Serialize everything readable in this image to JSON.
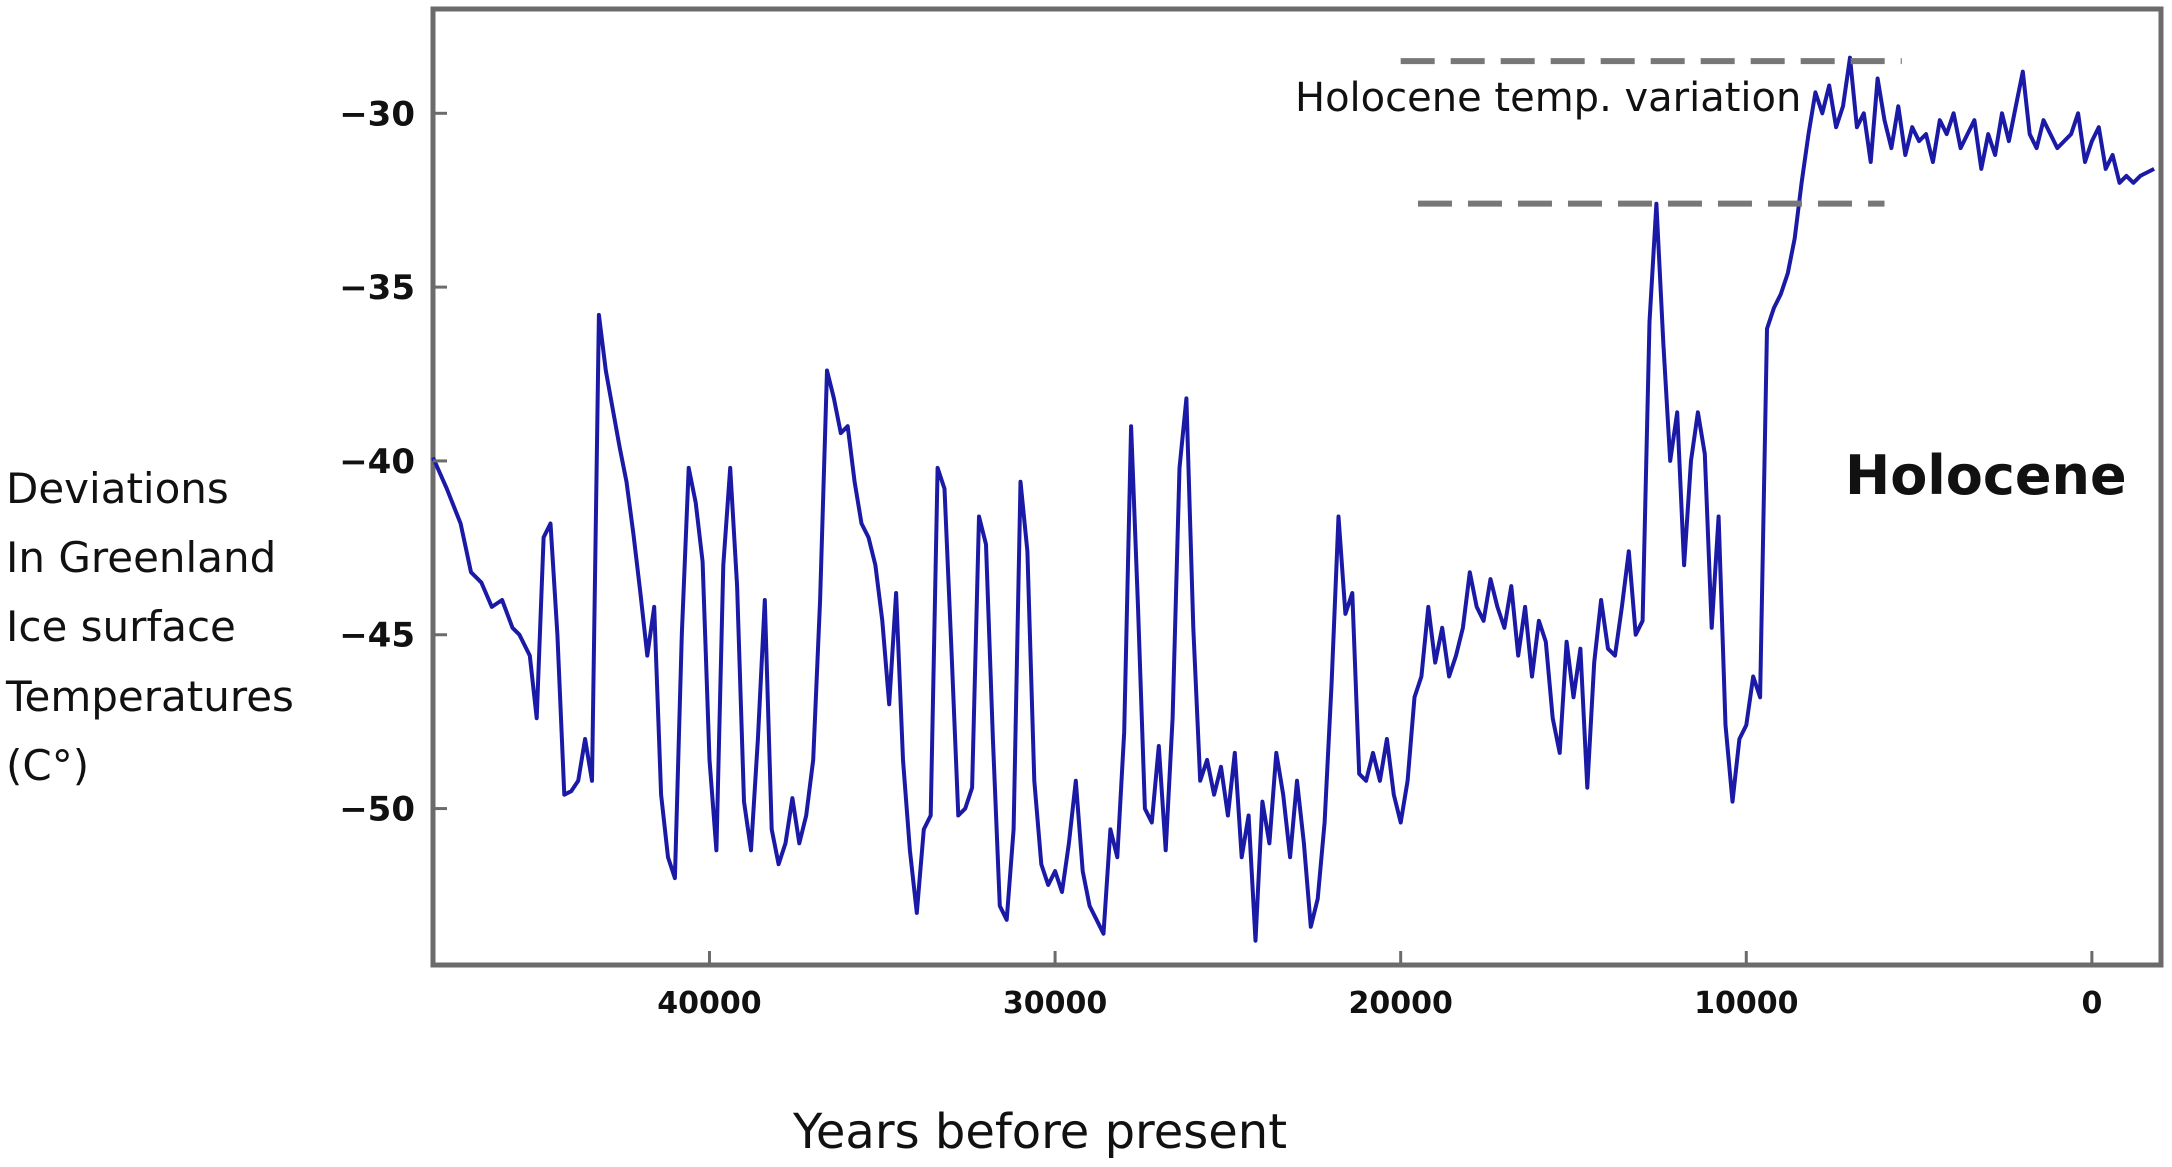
{
  "chart_data": {
    "type": "line",
    "title": "",
    "xlabel": "Years before present",
    "ylabel_lines": [
      "Deviations",
      "In Greenland",
      "Ice surface",
      "Temperatures",
      "(C°)"
    ],
    "xlim": [
      48000,
      -2000
    ],
    "ylim": [
      -54.5,
      -27
    ],
    "x_ticks": [
      40000,
      30000,
      20000,
      10000,
      0
    ],
    "x_tick_labels": [
      "40000",
      "30000",
      "20000",
      "10000",
      "0"
    ],
    "y_ticks": [
      -30,
      -35,
      -40,
      -45,
      -50
    ],
    "y_tick_labels": [
      "−30",
      "−35",
      "−40",
      "−45",
      "−50"
    ],
    "grid": false,
    "line_color": "#1a1aa6",
    "annotations": {
      "holocene_variation_label": "Holocene temp. variation",
      "holocene_label": "Holocene",
      "upper_dashed": {
        "y": -28.5,
        "x_from": 20000,
        "x_to": 5500
      },
      "lower_dashed": {
        "y": -32.6,
        "x_from": 19500,
        "x_to": 6000
      }
    },
    "series": [
      {
        "x": [
          48000,
          47600,
          47200,
          46900,
          46600,
          46300,
          46000,
          45700,
          45500,
          45200,
          45000,
          44800,
          44600,
          44400,
          44200,
          44000,
          43800,
          43600,
          43400,
          43200,
          43000,
          42800,
          42600,
          42400,
          42200,
          42000,
          41800,
          41600,
          41400,
          41200,
          41000,
          40800,
          40600,
          40400,
          40200,
          40000,
          39800,
          39600,
          39400,
          39200,
          39000,
          38800,
          38600,
          38400,
          38200,
          38000,
          37800,
          37600,
          37400,
          37200,
          37000,
          36800,
          36600,
          36400,
          36200,
          36000,
          35800,
          35600,
          35400,
          35200,
          35000,
          34800,
          34600,
          34400,
          34200,
          34000,
          33800,
          33600,
          33400,
          33200,
          33000,
          32800,
          32600,
          32400,
          32200,
          32000,
          31800,
          31600,
          31400,
          31200,
          31000,
          30800,
          30600,
          30400,
          30200,
          30000,
          29800,
          29600,
          29400,
          29200,
          29000,
          28800,
          28600,
          28400,
          28200,
          28000,
          27800,
          27600,
          27400,
          27200,
          27000,
          26800,
          26600,
          26400,
          26200,
          26000,
          25800,
          25600,
          25400,
          25200,
          25000,
          24800,
          24600,
          24400,
          24200,
          24000,
          23800,
          23600,
          23400,
          23200,
          23000,
          22800,
          22600,
          22400,
          22200,
          22000,
          21800,
          21600,
          21400,
          21200,
          21000,
          20800,
          20600,
          20400,
          20200,
          20000,
          19800,
          19600,
          19400,
          19200,
          19000,
          18800,
          18600,
          18400,
          18200,
          18000,
          17800,
          17600,
          17400,
          17200,
          17000,
          16800,
          16600,
          16400,
          16200,
          16000,
          15800,
          15600,
          15400,
          15200,
          15000,
          14800,
          14600,
          14400,
          14200,
          14000,
          13800,
          13600,
          13400,
          13200,
          13000,
          12800,
          12600,
          12400,
          12200,
          12000,
          11800,
          11600,
          11400,
          11200,
          11000,
          10800,
          10600,
          10400,
          10200,
          10000,
          9800,
          9600,
          9400,
          9200,
          9000,
          8800,
          8600,
          8400,
          8200,
          8000,
          7800,
          7600,
          7400,
          7200,
          7000,
          6800,
          6600,
          6400,
          6200,
          6000,
          5800,
          5600,
          5400,
          5200,
          5000,
          4800,
          4600,
          4400,
          4200,
          4000,
          3800,
          3600,
          3400,
          3200,
          3000,
          2800,
          2600,
          2400,
          2200,
          2000,
          1800,
          1600,
          1400,
          1200,
          1000,
          800,
          600,
          400,
          200,
          0,
          -200,
          -400,
          -600,
          -800,
          -1000,
          -1200,
          -1400,
          -1800
        ],
        "y": [
          -39.9,
          -40.8,
          -41.8,
          -43.2,
          -43.5,
          -44.2,
          -44.0,
          -44.8,
          -45.0,
          -45.6,
          -47.4,
          -42.2,
          -41.8,
          -45.0,
          -49.6,
          -49.5,
          -49.2,
          -48.0,
          -49.2,
          -35.8,
          -37.4,
          -38.5,
          -39.6,
          -40.6,
          -42.1,
          -43.8,
          -45.6,
          -44.2,
          -49.6,
          -51.4,
          -52.0,
          -45.0,
          -40.2,
          -41.2,
          -42.9,
          -48.6,
          -51.2,
          -43.0,
          -40.2,
          -43.6,
          -49.8,
          -51.2,
          -48.0,
          -44.0,
          -50.6,
          -51.6,
          -51.0,
          -49.7,
          -51.0,
          -50.2,
          -48.6,
          -44.0,
          -37.4,
          -38.2,
          -39.2,
          -39.0,
          -40.6,
          -41.8,
          -42.2,
          -43.0,
          -44.6,
          -47.0,
          -43.8,
          -48.6,
          -51.2,
          -53.0,
          -50.6,
          -50.2,
          -40.2,
          -40.8,
          -45.4,
          -50.2,
          -50.0,
          -49.4,
          -41.6,
          -42.4,
          -48.0,
          -52.8,
          -53.2,
          -50.6,
          -40.6,
          -42.6,
          -49.2,
          -51.6,
          -52.2,
          -51.8,
          -52.4,
          -51.0,
          -49.2,
          -51.8,
          -52.8,
          -53.2,
          -53.6,
          -50.6,
          -51.4,
          -47.8,
          -39.0,
          -44.2,
          -50.0,
          -50.4,
          -48.2,
          -51.2,
          -47.4,
          -40.2,
          -38.2,
          -44.8,
          -49.2,
          -48.6,
          -49.6,
          -48.8,
          -50.2,
          -48.4,
          -51.4,
          -50.2,
          -53.8,
          -49.8,
          -51.0,
          -48.4,
          -49.6,
          -51.4,
          -49.2,
          -51.0,
          -53.4,
          -52.6,
          -50.4,
          -46.4,
          -41.6,
          -44.4,
          -43.8,
          -49.0,
          -49.2,
          -48.4,
          -49.2,
          -48.0,
          -49.6,
          -50.4,
          -49.2,
          -46.8,
          -46.2,
          -44.2,
          -45.8,
          -44.8,
          -46.2,
          -45.6,
          -44.8,
          -43.2,
          -44.2,
          -44.6,
          -43.4,
          -44.2,
          -44.8,
          -43.6,
          -45.6,
          -44.2,
          -46.2,
          -44.6,
          -45.2,
          -47.4,
          -48.4,
          -45.2,
          -46.8,
          -45.4,
          -49.4,
          -45.8,
          -44.0,
          -45.4,
          -45.6,
          -44.2,
          -42.6,
          -45.0,
          -44.6,
          -36.0,
          -32.6,
          -36.6,
          -40.0,
          -38.6,
          -43.0,
          -40.0,
          -38.6,
          -39.8,
          -44.8,
          -41.6,
          -47.6,
          -49.8,
          -48.0,
          -47.6,
          -46.2,
          -46.8,
          -36.2,
          -35.6,
          -35.2,
          -34.6,
          -33.6,
          -32.0,
          -30.6,
          -29.4,
          -30.0,
          -29.2,
          -30.4,
          -29.8,
          -28.4,
          -30.4,
          -30.0,
          -31.4,
          -29.0,
          -30.2,
          -31.0,
          -29.8,
          -31.2,
          -30.4,
          -30.8,
          -30.6,
          -31.4,
          -30.2,
          -30.6,
          -30.0,
          -31.0,
          -30.6,
          -30.2,
          -31.6,
          -30.6,
          -31.2,
          -30.0,
          -30.8,
          -29.8,
          -28.8,
          -30.6,
          -31.0,
          -30.2,
          -30.6,
          -31.0,
          -30.8,
          -30.6,
          -30.0,
          -31.4,
          -30.8,
          -30.4,
          -31.6,
          -31.2,
          -32.0,
          -31.8,
          -32.0,
          -31.8,
          -31.6
        ]
      }
    ]
  }
}
